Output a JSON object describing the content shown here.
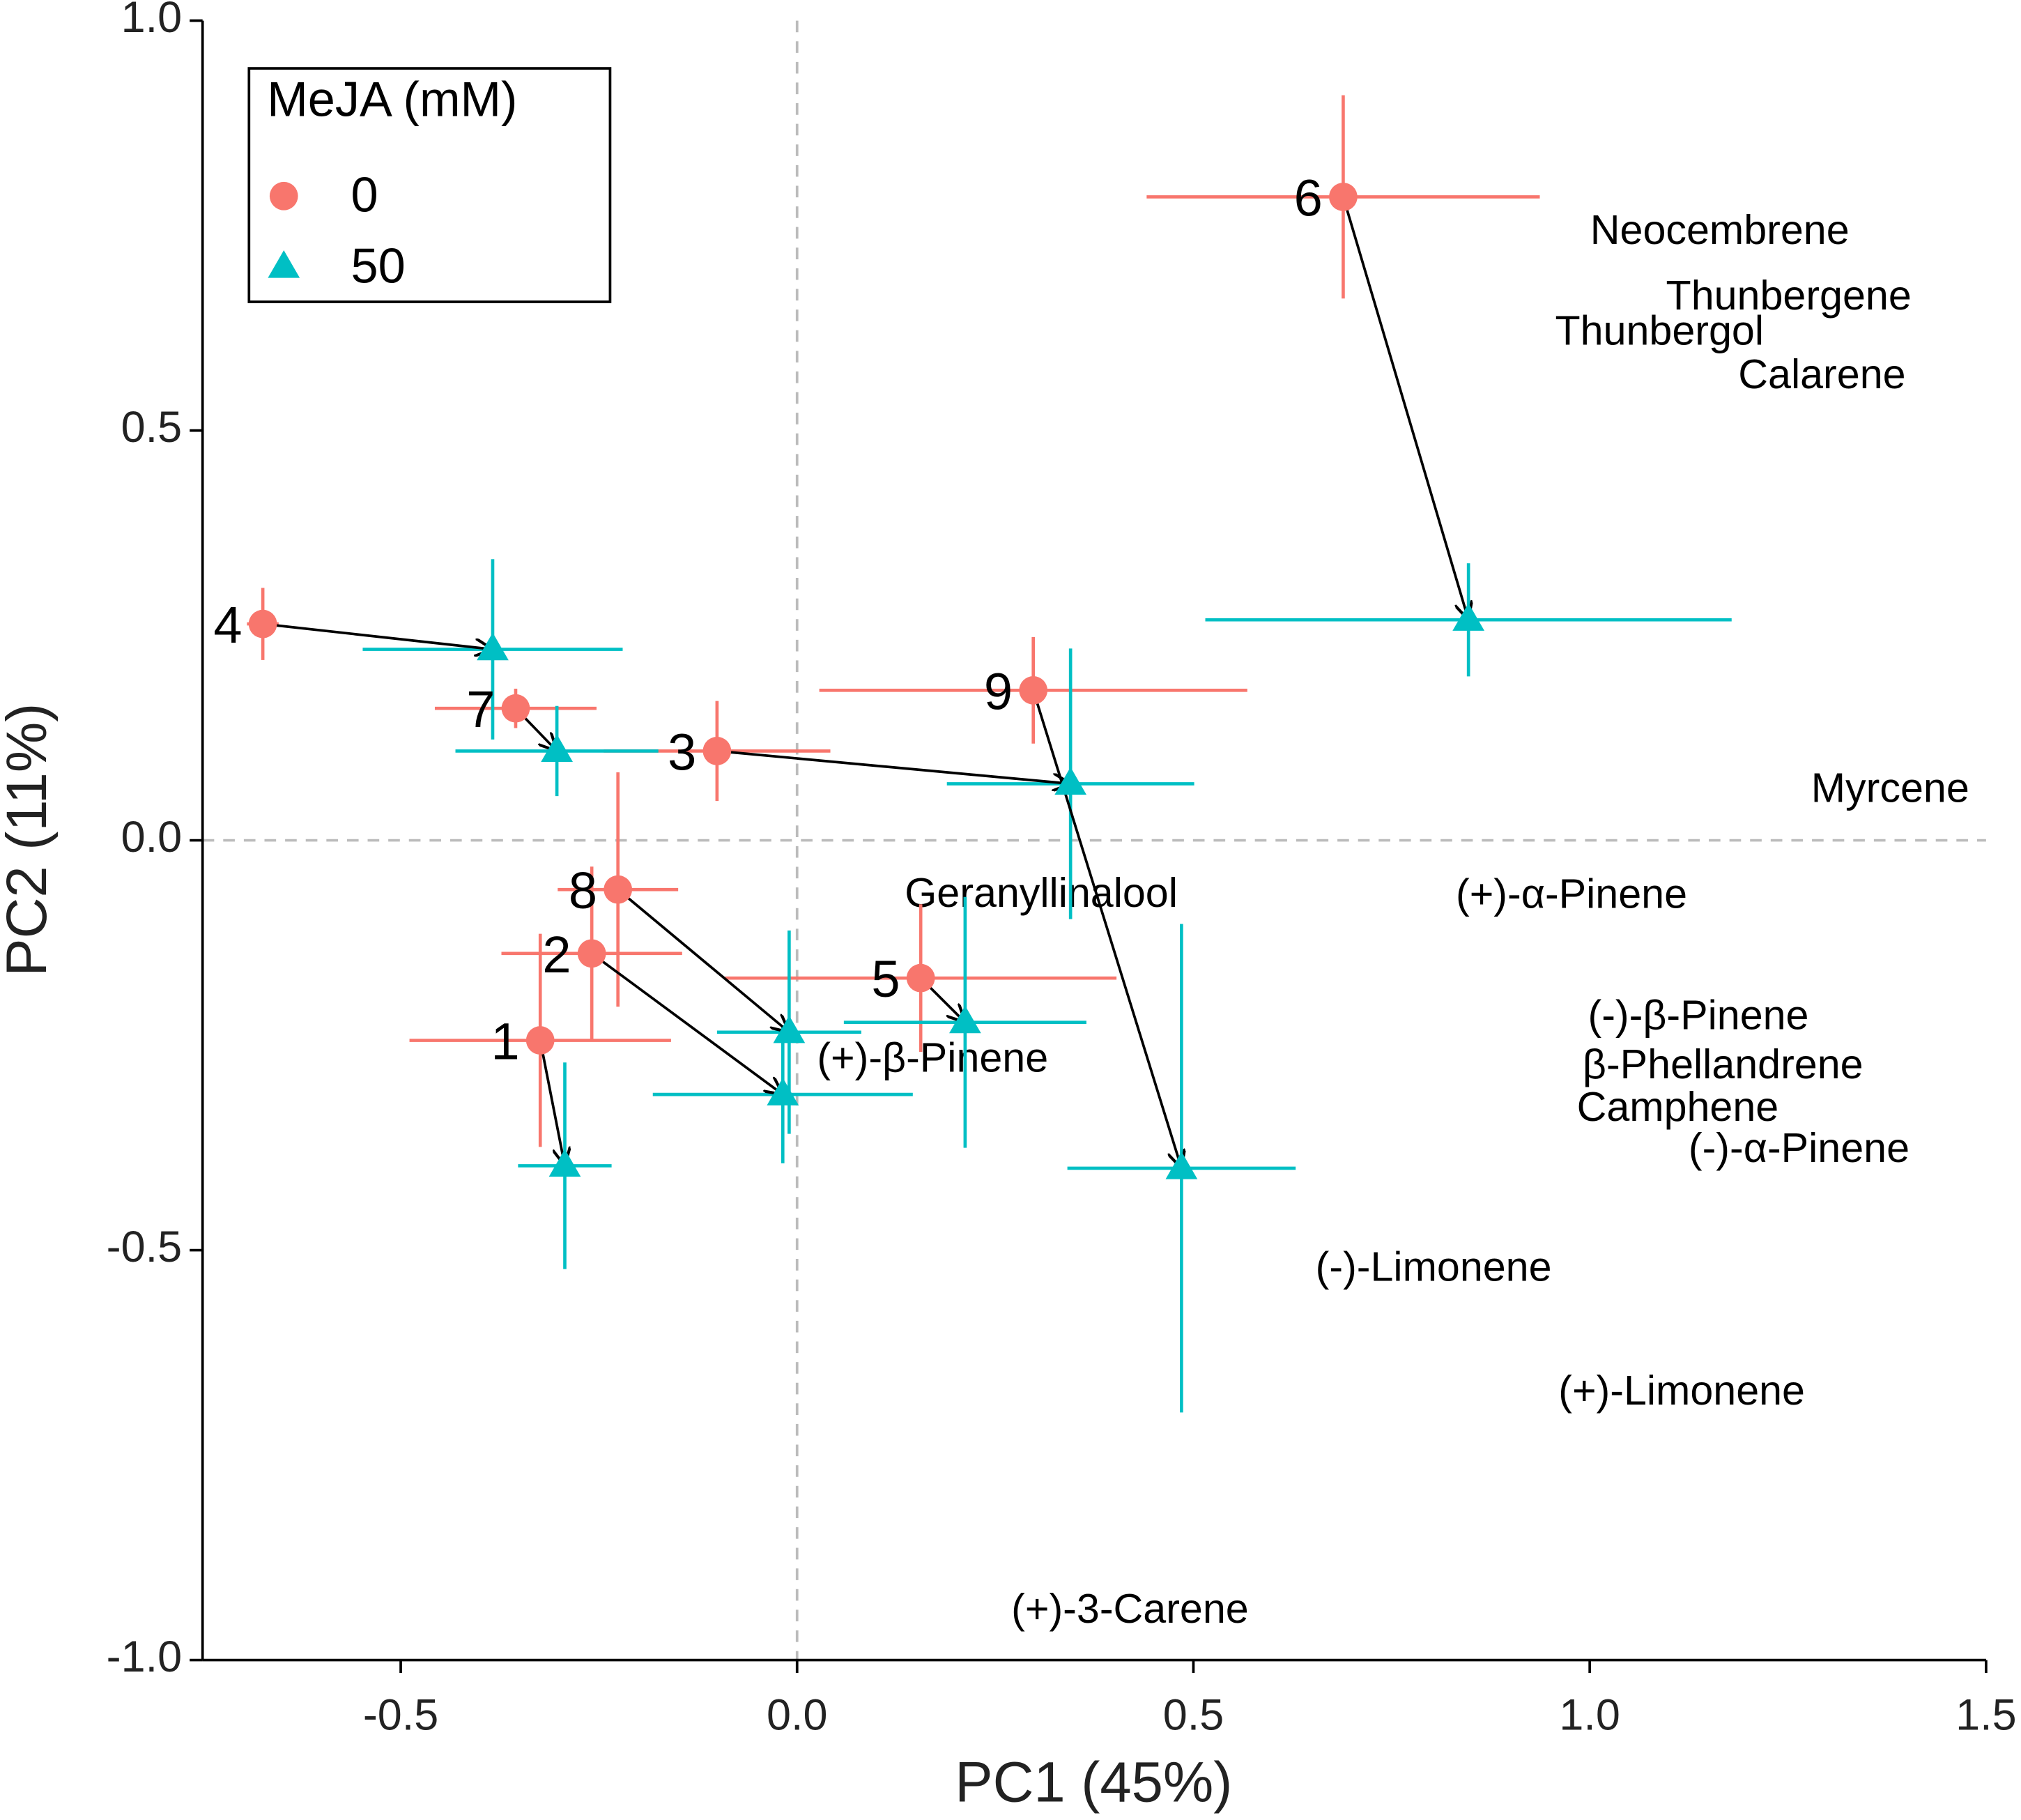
{
  "chart_data": {
    "type": "scatter",
    "x_label": "PC1 (45%)",
    "y_label": "PC2 (11%)",
    "xlim": [
      -0.75,
      1.5
    ],
    "ylim": [
      -1.0,
      1.0
    ],
    "xticks": [
      -0.5,
      {
        "value": 0,
        "label": "0.0"
      },
      0.5,
      {
        "value": 1,
        "label": "1.0"
      },
      1.5
    ],
    "yticks": [
      {
        "value": -1,
        "label": "-1.0"
      },
      -0.5,
      {
        "value": 0,
        "label": "0.0"
      },
      0.5,
      {
        "value": 1,
        "label": "1.0"
      }
    ],
    "hline": 0,
    "vline": 0,
    "legend_title": "MeJA (mM)",
    "legend_position": "top-left",
    "point_labels": [
      "1",
      "2",
      "3",
      "4",
      "5",
      "6",
      "7",
      "8",
      "9"
    ],
    "series": [
      {
        "name": "0",
        "color": "#f8766d",
        "marker": "circle",
        "x": [
          -0.324,
          -0.259,
          -0.101,
          -0.674,
          0.156,
          0.689,
          -0.355,
          -0.226,
          0.298
        ],
        "y": [
          -0.244,
          -0.138,
          0.109,
          0.264,
          -0.168,
          0.785,
          0.161,
          -0.06,
          0.183
        ],
        "xerr": [
          0.165,
          0.114,
          0.143,
          0.02,
          0.247,
          0.248,
          0.102,
          0.076,
          0.27
        ],
        "yerr": [
          0.13,
          0.106,
          0.061,
          0.044,
          0.09,
          0.124,
          0.024,
          0.143,
          0.065
        ]
      },
      {
        "name": "50",
        "color": "#00bfc4",
        "marker": "triangle",
        "x": [
          -0.293,
          -0.018,
          0.345,
          -0.384,
          0.212,
          0.847,
          -0.303,
          -0.01,
          0.485
        ],
        "y": [
          -0.397,
          -0.31,
          0.069,
          0.233,
          -0.222,
          0.269,
          0.109,
          -0.234,
          -0.4
        ],
        "xerr": [
          0.059,
          0.164,
          0.156,
          0.164,
          0.153,
          0.332,
          0.128,
          0.091,
          0.144
        ],
        "yerr": [
          0.126,
          0.084,
          0.165,
          0.11,
          0.153,
          0.069,
          0.055,
          0.124,
          0.298
        ]
      }
    ],
    "annotations": [
      {
        "text": "Neocembrene",
        "x": 1.164,
        "y": 0.741
      },
      {
        "text": "Thunbergene",
        "x": 1.251,
        "y": 0.661
      },
      {
        "text": "Thunbergol",
        "x": 1.088,
        "y": 0.618
      },
      {
        "text": "Calarene",
        "x": 1.293,
        "y": 0.565
      },
      {
        "text": "Myrcene",
        "x": 1.379,
        "y": 0.06
      },
      {
        "text": "Geranyllinalool",
        "x": 0.308,
        "y": -0.068
      },
      {
        "text": "(+)-α-Pinene",
        "x": 0.977,
        "y": -0.069
      },
      {
        "text": "(-)-β-Pinene",
        "x": 1.137,
        "y": -0.217
      },
      {
        "text": "β-Phellandrene",
        "x": 1.168,
        "y": -0.277
      },
      {
        "text": "Camphene",
        "x": 1.111,
        "y": -0.329
      },
      {
        "text": "(-)-α-Pinene",
        "x": 1.264,
        "y": -0.379
      },
      {
        "text": "(-)-Limonene",
        "x": 0.803,
        "y": -0.524
      },
      {
        "text": "(+)-Limonene",
        "x": 1.116,
        "y": -0.675
      },
      {
        "text": "(+)-β-Pinene",
        "x": 0.171,
        "y": -0.269
      },
      {
        "text": "(+)-3-Carene",
        "x": 0.42,
        "y": -0.941
      }
    ]
  }
}
